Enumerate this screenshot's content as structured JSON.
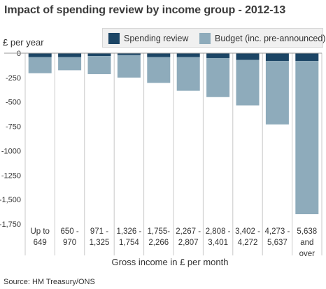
{
  "chart_data": {
    "type": "bar",
    "stacked": true,
    "title": "Impact of spending review by income group - 2012-13",
    "ylabel": "£ per year",
    "xlabel": "Gross income in £ per month",
    "ylim": [
      -1750,
      0
    ],
    "yticks": [
      0,
      -250,
      -500,
      -750,
      -1000,
      -1250,
      -1500,
      -1750
    ],
    "ytick_labels": [
      "0",
      "-250",
      "-500",
      "-750",
      "-1000",
      "-1250",
      "-1,500",
      "-1,750"
    ],
    "categories": [
      [
        "Up to",
        "649"
      ],
      [
        "650 -",
        "970"
      ],
      [
        "971 -",
        "1,325"
      ],
      [
        "1,326 -",
        "1,754"
      ],
      [
        "1,755-",
        "2,266"
      ],
      [
        "2,267 -",
        "2,807"
      ],
      [
        "2,808 -",
        "3,401"
      ],
      [
        "3,402 -",
        "4,272"
      ],
      [
        "4,273 -",
        "5,637"
      ],
      [
        "5,638",
        "and",
        "over"
      ]
    ],
    "series": [
      {
        "name": "Spending review",
        "color": "#1c4565",
        "values": [
          -40,
          -40,
          -30,
          -20,
          -40,
          -40,
          -50,
          -70,
          -80,
          -80
        ]
      },
      {
        "name": "Budget (inc. pre-announced)",
        "color": "#8eabbb",
        "values": [
          -165,
          -135,
          -185,
          -230,
          -265,
          -345,
          -400,
          -465,
          -650,
          -1570
        ]
      }
    ],
    "grid": false,
    "legend_position": "top"
  },
  "source": "Source: HM Treasury/ONS"
}
